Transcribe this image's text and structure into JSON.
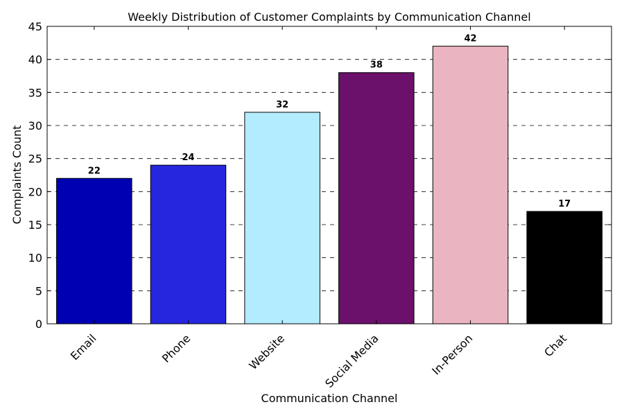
{
  "chart_data": {
    "type": "bar",
    "title": "Weekly Distribution of Customer Complaints by Communication Channel",
    "xlabel": "Communication Channel",
    "ylabel": "Complaints Count",
    "categories": [
      "Email",
      "Phone",
      "Website",
      "Social Media",
      "In-Person",
      "Chat"
    ],
    "values": [
      22,
      24,
      32,
      38,
      42,
      17
    ],
    "colors": [
      "#0000b3",
      "#2626df",
      "#b3ecff",
      "#6b106b",
      "#eab4c0",
      "#000000"
    ],
    "ylim": [
      0,
      45
    ],
    "yticks": [
      0,
      5,
      10,
      15,
      20,
      25,
      30,
      35,
      40,
      45
    ],
    "grid": "horizontal-dashed",
    "data_labels": true
  }
}
